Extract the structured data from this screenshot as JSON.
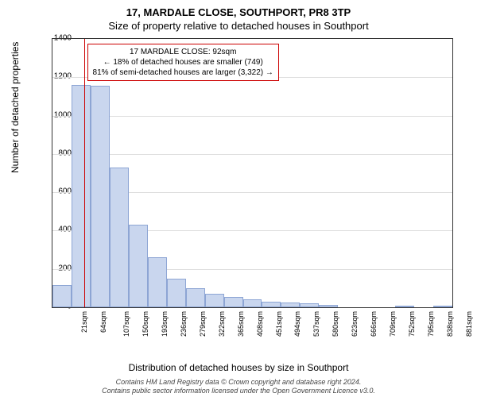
{
  "chart": {
    "type": "histogram",
    "title_line1": "17, MARDALE CLOSE, SOUTHPORT, PR8 3TP",
    "title_line2": "Size of property relative to detached houses in Southport",
    "title_fontsize": 13,
    "ylabel": "Number of detached properties",
    "xlabel": "Distribution of detached houses by size in Southport",
    "label_fontsize": 12,
    "tick_fontsize": 10,
    "ylim": [
      0,
      1400
    ],
    "ytick_step": 200,
    "yticks": [
      0,
      200,
      400,
      600,
      800,
      1000,
      1200,
      1400
    ],
    "x_categories": [
      "21sqm",
      "64sqm",
      "107sqm",
      "150sqm",
      "193sqm",
      "236sqm",
      "279sqm",
      "322sqm",
      "365sqm",
      "408sqm",
      "451sqm",
      "494sqm",
      "537sqm",
      "580sqm",
      "623sqm",
      "666sqm",
      "709sqm",
      "752sqm",
      "795sqm",
      "838sqm",
      "881sqm"
    ],
    "values": [
      115,
      1160,
      1155,
      730,
      430,
      260,
      150,
      100,
      70,
      55,
      40,
      30,
      25,
      20,
      12,
      0,
      0,
      0,
      5,
      0,
      10
    ],
    "bar_fill": "#c9d6ee",
    "bar_stroke": "#8da5d4",
    "background_color": "#ffffff",
    "grid_color": "#dddddd",
    "marker": {
      "color": "#cc0000",
      "position_index": 1.65
    },
    "annotation": {
      "line1": "17 MARDALE CLOSE: 92sqm",
      "line2": "← 18% of detached houses are smaller (749)",
      "line3": "81% of semi-detached houses are larger (3,322) →",
      "border_color": "#cc0000",
      "fontsize": 10
    },
    "footer": {
      "line1": "Contains HM Land Registry data © Crown copyright and database right 2024.",
      "line2": "Contains public sector information licensed under the Open Government Licence v3.0."
    }
  }
}
